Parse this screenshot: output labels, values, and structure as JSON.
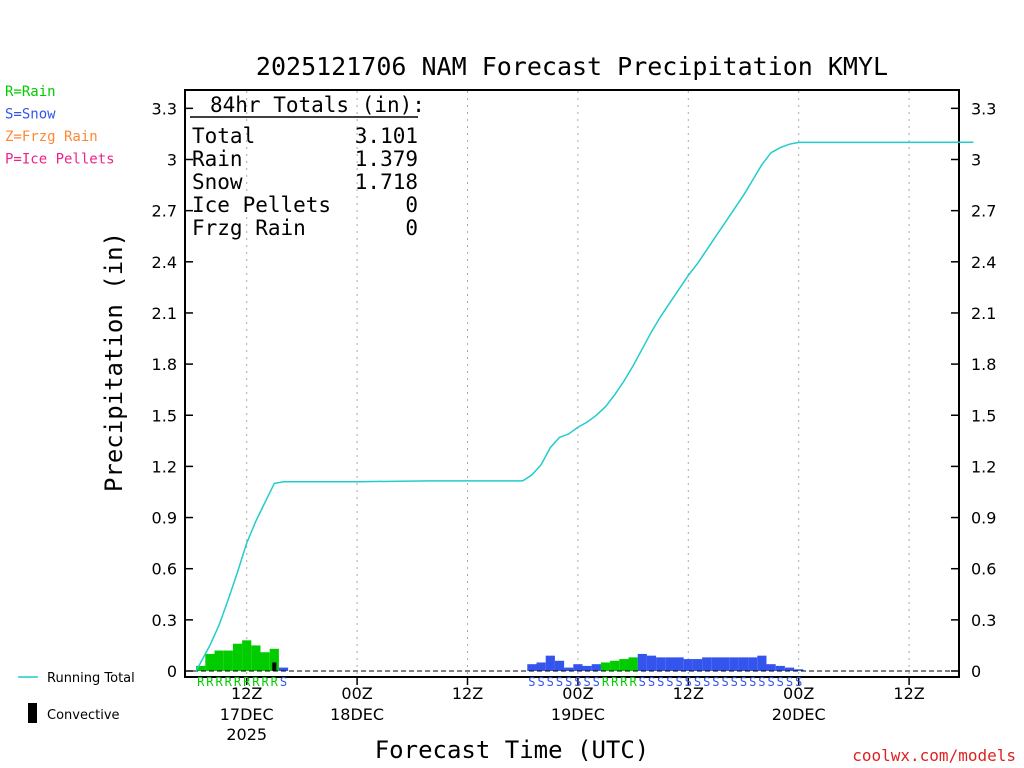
{
  "chart_data": {
    "type": "bar",
    "title": "2025121706 NAM Forecast Precipitation KMYL",
    "xlabel": "Forecast Time (UTC)",
    "ylabel": "Precipitation (in)",
    "ylim": [
      0,
      3.4
    ],
    "xlim": [
      0,
      85
    ],
    "xunit": "forecast hours from 2025121706",
    "yticks": [
      "0",
      "0.3",
      "0.6",
      "0.9",
      "1.2",
      "1.5",
      "1.8",
      "2.1",
      "2.4",
      "2.7",
      "3",
      "3.3"
    ],
    "xticks": [
      {
        "hour": 6,
        "label": "12Z",
        "date": "17DEC",
        "year": "2025"
      },
      {
        "hour": 18,
        "label": "00Z",
        "date": "18DEC",
        "year": ""
      },
      {
        "hour": 30,
        "label": "12Z",
        "date": "",
        "year": ""
      },
      {
        "hour": 42,
        "label": "00Z",
        "date": "19DEC",
        "year": ""
      },
      {
        "hour": 54,
        "label": "12Z",
        "date": "",
        "year": ""
      },
      {
        "hour": 66,
        "label": "00Z",
        "date": "20DEC",
        "year": ""
      },
      {
        "hour": 78,
        "label": "12Z",
        "date": "",
        "year": ""
      }
    ],
    "totals": {
      "header": "84hr Totals (in):",
      "rows": [
        {
          "label": "Total",
          "value": "3.101"
        },
        {
          "label": "Rain",
          "value": "1.379"
        },
        {
          "label": "Snow",
          "value": "1.718"
        },
        {
          "label": "Ice Pellets",
          "value": "0"
        },
        {
          "label": "Frzg Rain",
          "value": "0"
        }
      ]
    },
    "type_legend": [
      {
        "label": "R=Rain",
        "color": "#00cc00"
      },
      {
        "label": "S=Snow",
        "color": "#3355ee"
      },
      {
        "label": "Z=Frzg Rain",
        "color": "#ff8833"
      },
      {
        "label": "P=Ice Pellets",
        "color": "#ee2288"
      }
    ],
    "series_legend": {
      "running_total": {
        "label": "Running Total",
        "color": "#22cccc"
      },
      "convective": {
        "label": "Convective",
        "color": "#000000"
      }
    },
    "hourly_precip": {
      "rain": [
        {
          "hour": 1,
          "value": 0.03
        },
        {
          "hour": 2,
          "value": 0.1
        },
        {
          "hour": 3,
          "value": 0.12
        },
        {
          "hour": 4,
          "value": 0.12
        },
        {
          "hour": 5,
          "value": 0.16
        },
        {
          "hour": 6,
          "value": 0.18
        },
        {
          "hour": 7,
          "value": 0.15
        },
        {
          "hour": 8,
          "value": 0.11
        },
        {
          "hour": 9,
          "value": 0.13
        },
        {
          "hour": 45,
          "value": 0.05
        },
        {
          "hour": 46,
          "value": 0.06
        },
        {
          "hour": 47,
          "value": 0.07
        },
        {
          "hour": 48,
          "value": 0.08
        }
      ],
      "snow": [
        {
          "hour": 10,
          "value": 0.02
        },
        {
          "hour": 37,
          "value": 0.04
        },
        {
          "hour": 38,
          "value": 0.05
        },
        {
          "hour": 39,
          "value": 0.09
        },
        {
          "hour": 40,
          "value": 0.06
        },
        {
          "hour": 41,
          "value": 0.02
        },
        {
          "hour": 42,
          "value": 0.04
        },
        {
          "hour": 43,
          "value": 0.03
        },
        {
          "hour": 44,
          "value": 0.04
        },
        {
          "hour": 49,
          "value": 0.1
        },
        {
          "hour": 50,
          "value": 0.09
        },
        {
          "hour": 51,
          "value": 0.08
        },
        {
          "hour": 52,
          "value": 0.08
        },
        {
          "hour": 53,
          "value": 0.08
        },
        {
          "hour": 54,
          "value": 0.07
        },
        {
          "hour": 55,
          "value": 0.07
        },
        {
          "hour": 56,
          "value": 0.08
        },
        {
          "hour": 57,
          "value": 0.08
        },
        {
          "hour": 58,
          "value": 0.08
        },
        {
          "hour": 59,
          "value": 0.08
        },
        {
          "hour": 60,
          "value": 0.08
        },
        {
          "hour": 61,
          "value": 0.08
        },
        {
          "hour": 62,
          "value": 0.09
        },
        {
          "hour": 63,
          "value": 0.04
        },
        {
          "hour": 64,
          "value": 0.03
        },
        {
          "hour": 65,
          "value": 0.02
        },
        {
          "hour": 66,
          "value": 0.01
        }
      ],
      "convective": [
        {
          "hour": 9,
          "value": 0.05
        }
      ]
    },
    "ptype_strip": [
      {
        "hour": 1,
        "code": "R"
      },
      {
        "hour": 2,
        "code": "R"
      },
      {
        "hour": 3,
        "code": "R"
      },
      {
        "hour": 4,
        "code": "R"
      },
      {
        "hour": 5,
        "code": "R"
      },
      {
        "hour": 6,
        "code": "R"
      },
      {
        "hour": 7,
        "code": "R"
      },
      {
        "hour": 8,
        "code": "R"
      },
      {
        "hour": 9,
        "code": "R"
      },
      {
        "hour": 10,
        "code": "S"
      },
      {
        "hour": 37,
        "code": "S"
      },
      {
        "hour": 38,
        "code": "S"
      },
      {
        "hour": 39,
        "code": "S"
      },
      {
        "hour": 40,
        "code": "S"
      },
      {
        "hour": 41,
        "code": "S"
      },
      {
        "hour": 42,
        "code": "S"
      },
      {
        "hour": 43,
        "code": "S"
      },
      {
        "hour": 44,
        "code": "S"
      },
      {
        "hour": 45,
        "code": "R"
      },
      {
        "hour": 46,
        "code": "R"
      },
      {
        "hour": 47,
        "code": "R"
      },
      {
        "hour": 48,
        "code": "R"
      },
      {
        "hour": 49,
        "code": "S"
      },
      {
        "hour": 50,
        "code": "S"
      },
      {
        "hour": 51,
        "code": "S"
      },
      {
        "hour": 52,
        "code": "S"
      },
      {
        "hour": 53,
        "code": "S"
      },
      {
        "hour": 54,
        "code": "S"
      },
      {
        "hour": 55,
        "code": "S"
      },
      {
        "hour": 56,
        "code": "S"
      },
      {
        "hour": 57,
        "code": "S"
      },
      {
        "hour": 58,
        "code": "S"
      },
      {
        "hour": 59,
        "code": "S"
      },
      {
        "hour": 60,
        "code": "S"
      },
      {
        "hour": 61,
        "code": "S"
      },
      {
        "hour": 62,
        "code": "S"
      },
      {
        "hour": 63,
        "code": "S"
      },
      {
        "hour": 64,
        "code": "S"
      },
      {
        "hour": 65,
        "code": "S"
      },
      {
        "hour": 66,
        "code": "S"
      }
    ],
    "running_total": [
      {
        "hour": 0.5,
        "value": 0.0
      },
      {
        "hour": 1,
        "value": 0.05
      },
      {
        "hour": 2,
        "value": 0.15
      },
      {
        "hour": 3,
        "value": 0.27
      },
      {
        "hour": 4,
        "value": 0.42
      },
      {
        "hour": 5,
        "value": 0.58
      },
      {
        "hour": 6,
        "value": 0.75
      },
      {
        "hour": 7,
        "value": 0.88
      },
      {
        "hour": 8,
        "value": 0.99
      },
      {
        "hour": 9,
        "value": 1.1
      },
      {
        "hour": 10,
        "value": 1.11
      },
      {
        "hour": 18,
        "value": 1.11
      },
      {
        "hour": 26,
        "value": 1.115
      },
      {
        "hour": 36,
        "value": 1.115
      },
      {
        "hour": 37,
        "value": 1.15
      },
      {
        "hour": 38,
        "value": 1.21
      },
      {
        "hour": 39,
        "value": 1.31
      },
      {
        "hour": 40,
        "value": 1.37
      },
      {
        "hour": 41,
        "value": 1.39
      },
      {
        "hour": 42,
        "value": 1.43
      },
      {
        "hour": 43,
        "value": 1.46
      },
      {
        "hour": 44,
        "value": 1.5
      },
      {
        "hour": 45,
        "value": 1.55
      },
      {
        "hour": 46,
        "value": 1.62
      },
      {
        "hour": 47,
        "value": 1.7
      },
      {
        "hour": 48,
        "value": 1.79
      },
      {
        "hour": 49,
        "value": 1.89
      },
      {
        "hour": 50,
        "value": 1.99
      },
      {
        "hour": 51,
        "value": 2.08
      },
      {
        "hour": 52,
        "value": 2.16
      },
      {
        "hour": 53,
        "value": 2.24
      },
      {
        "hour": 54,
        "value": 2.32
      },
      {
        "hour": 55,
        "value": 2.39
      },
      {
        "hour": 56,
        "value": 2.47
      },
      {
        "hour": 57,
        "value": 2.55
      },
      {
        "hour": 58,
        "value": 2.63
      },
      {
        "hour": 59,
        "value": 2.71
      },
      {
        "hour": 60,
        "value": 2.79
      },
      {
        "hour": 61,
        "value": 2.88
      },
      {
        "hour": 62,
        "value": 2.97
      },
      {
        "hour": 63,
        "value": 3.04
      },
      {
        "hour": 64,
        "value": 3.07
      },
      {
        "hour": 65,
        "value": 3.09
      },
      {
        "hour": 66,
        "value": 3.1
      },
      {
        "hour": 85,
        "value": 3.101
      }
    ]
  },
  "credit": "coolwx.com/models"
}
